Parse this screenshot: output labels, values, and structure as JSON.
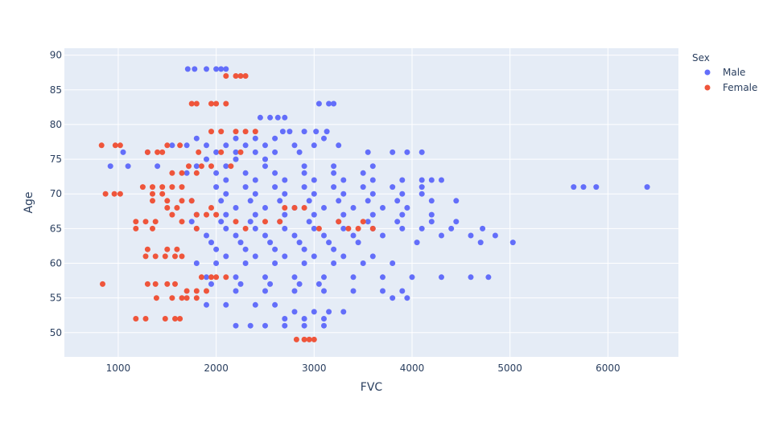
{
  "chart_data": {
    "type": "scatter",
    "xlabel": "FVC",
    "ylabel": "Age",
    "xlim": [
      450,
      6720
    ],
    "ylim": [
      46.5,
      91
    ],
    "x_ticks": [
      1000,
      2000,
      3000,
      4000,
      5000,
      6000
    ],
    "y_ticks": [
      50,
      55,
      60,
      65,
      70,
      75,
      80,
      85,
      90
    ],
    "grid": true,
    "legend": {
      "title": "Sex",
      "position": "top-right"
    },
    "colors": {
      "plot_bg": "#e5ecf6",
      "grid": "#ffffff",
      "Male": "#636efa",
      "Female": "#ef553b"
    },
    "series": [
      {
        "name": "Male",
        "points": [
          [
            1710,
            88
          ],
          [
            1780,
            88
          ],
          [
            1900,
            88
          ],
          [
            2000,
            88
          ],
          [
            2050,
            88
          ],
          [
            2100,
            88
          ],
          [
            2450,
            81
          ],
          [
            2550,
            81
          ],
          [
            2630,
            81
          ],
          [
            2700,
            81
          ],
          [
            3050,
            83
          ],
          [
            3150,
            83
          ],
          [
            3200,
            83
          ],
          [
            2680,
            79
          ],
          [
            2750,
            79
          ],
          [
            2900,
            79
          ],
          [
            3020,
            79
          ],
          [
            3130,
            79
          ],
          [
            1800,
            78
          ],
          [
            2200,
            78
          ],
          [
            2400,
            78
          ],
          [
            2600,
            78
          ],
          [
            3100,
            78
          ],
          [
            1550,
            77
          ],
          [
            1700,
            77
          ],
          [
            1900,
            77
          ],
          [
            2100,
            77
          ],
          [
            2300,
            77
          ],
          [
            2500,
            77
          ],
          [
            2800,
            77
          ],
          [
            3000,
            77
          ],
          [
            3250,
            77
          ],
          [
            1050,
            76
          ],
          [
            1300,
            76
          ],
          [
            2000,
            76
          ],
          [
            2200,
            76
          ],
          [
            2400,
            76
          ],
          [
            2600,
            76
          ],
          [
            2850,
            76
          ],
          [
            3550,
            76
          ],
          [
            3800,
            76
          ],
          [
            3950,
            76
          ],
          [
            4100,
            76
          ],
          [
            920,
            74
          ],
          [
            1100,
            74
          ],
          [
            1400,
            74
          ],
          [
            1800,
            74
          ],
          [
            2100,
            74
          ],
          [
            2500,
            74
          ],
          [
            2900,
            74
          ],
          [
            3200,
            74
          ],
          [
            3600,
            74
          ],
          [
            1900,
            75
          ],
          [
            2200,
            75
          ],
          [
            2500,
            75
          ],
          [
            1700,
            73
          ],
          [
            2000,
            73
          ],
          [
            2300,
            73
          ],
          [
            2600,
            73
          ],
          [
            2900,
            73
          ],
          [
            3200,
            73
          ],
          [
            3500,
            73
          ],
          [
            2100,
            72
          ],
          [
            2400,
            72
          ],
          [
            2700,
            72
          ],
          [
            3000,
            72
          ],
          [
            3300,
            72
          ],
          [
            3600,
            72
          ],
          [
            3900,
            72
          ],
          [
            4100,
            72
          ],
          [
            4200,
            72
          ],
          [
            4300,
            72
          ],
          [
            2000,
            71
          ],
          [
            2300,
            71
          ],
          [
            2600,
            71
          ],
          [
            2900,
            71
          ],
          [
            3200,
            71
          ],
          [
            3500,
            71
          ],
          [
            3800,
            71
          ],
          [
            4100,
            71
          ],
          [
            5650,
            71
          ],
          [
            5750,
            71
          ],
          [
            5880,
            71
          ],
          [
            6400,
            71
          ],
          [
            2100,
            70
          ],
          [
            2400,
            70
          ],
          [
            2700,
            70
          ],
          [
            3000,
            70
          ],
          [
            3300,
            70
          ],
          [
            3600,
            70
          ],
          [
            3900,
            70
          ],
          [
            4100,
            70
          ],
          [
            1750,
            69
          ],
          [
            2050,
            69
          ],
          [
            2350,
            69
          ],
          [
            2650,
            69
          ],
          [
            2950,
            69
          ],
          [
            3250,
            69
          ],
          [
            3550,
            69
          ],
          [
            3850,
            69
          ],
          [
            4200,
            69
          ],
          [
            4450,
            69
          ],
          [
            2200,
            68
          ],
          [
            2500,
            68
          ],
          [
            2800,
            68
          ],
          [
            3100,
            68
          ],
          [
            3400,
            68
          ],
          [
            3700,
            68
          ],
          [
            3950,
            68
          ],
          [
            1800,
            67
          ],
          [
            2100,
            67
          ],
          [
            2400,
            67
          ],
          [
            2700,
            67
          ],
          [
            3000,
            67
          ],
          [
            3300,
            67
          ],
          [
            3600,
            67
          ],
          [
            3900,
            67
          ],
          [
            4200,
            67
          ],
          [
            1750,
            66
          ],
          [
            2050,
            66
          ],
          [
            2350,
            66
          ],
          [
            2650,
            66
          ],
          [
            2950,
            66
          ],
          [
            3250,
            66
          ],
          [
            3550,
            66
          ],
          [
            3850,
            66
          ],
          [
            4200,
            66
          ],
          [
            4450,
            66
          ],
          [
            1800,
            65
          ],
          [
            2100,
            65
          ],
          [
            2400,
            65
          ],
          [
            2700,
            65
          ],
          [
            3000,
            65
          ],
          [
            3300,
            65
          ],
          [
            3600,
            65
          ],
          [
            3900,
            65
          ],
          [
            4100,
            65
          ],
          [
            4400,
            65
          ],
          [
            4720,
            65
          ],
          [
            1900,
            64
          ],
          [
            2200,
            64
          ],
          [
            2500,
            64
          ],
          [
            2800,
            64
          ],
          [
            3100,
            64
          ],
          [
            3400,
            64
          ],
          [
            3700,
            64
          ],
          [
            4300,
            64
          ],
          [
            4600,
            64
          ],
          [
            4850,
            64
          ],
          [
            1950,
            63
          ],
          [
            2250,
            63
          ],
          [
            2550,
            63
          ],
          [
            2850,
            63
          ],
          [
            3150,
            63
          ],
          [
            3450,
            63
          ],
          [
            4050,
            63
          ],
          [
            4700,
            63
          ],
          [
            5030,
            63
          ],
          [
            2000,
            62
          ],
          [
            2300,
            62
          ],
          [
            2600,
            62
          ],
          [
            2900,
            62
          ],
          [
            3200,
            62
          ],
          [
            2100,
            61
          ],
          [
            2400,
            61
          ],
          [
            2700,
            61
          ],
          [
            3000,
            61
          ],
          [
            3300,
            61
          ],
          [
            3600,
            61
          ],
          [
            1800,
            60
          ],
          [
            2000,
            60
          ],
          [
            2300,
            60
          ],
          [
            2600,
            60
          ],
          [
            2900,
            60
          ],
          [
            3200,
            60
          ],
          [
            3500,
            60
          ],
          [
            3800,
            60
          ],
          [
            1900,
            58
          ],
          [
            2200,
            58
          ],
          [
            2500,
            58
          ],
          [
            2800,
            58
          ],
          [
            3100,
            58
          ],
          [
            3400,
            58
          ],
          [
            3700,
            58
          ],
          [
            4000,
            58
          ],
          [
            4300,
            58
          ],
          [
            4600,
            58
          ],
          [
            4780,
            58
          ],
          [
            1950,
            57
          ],
          [
            2250,
            57
          ],
          [
            2550,
            57
          ],
          [
            2850,
            57
          ],
          [
            3050,
            57
          ],
          [
            2200,
            56
          ],
          [
            2500,
            56
          ],
          [
            2800,
            56
          ],
          [
            3100,
            56
          ],
          [
            3400,
            56
          ],
          [
            3700,
            56
          ],
          [
            3900,
            56
          ],
          [
            3800,
            55
          ],
          [
            3950,
            55
          ],
          [
            1900,
            54
          ],
          [
            2100,
            54
          ],
          [
            2400,
            54
          ],
          [
            2600,
            54
          ],
          [
            2800,
            53
          ],
          [
            3000,
            53
          ],
          [
            3150,
            53
          ],
          [
            3300,
            53
          ],
          [
            2700,
            52
          ],
          [
            2900,
            52
          ],
          [
            3100,
            52
          ],
          [
            2200,
            51
          ],
          [
            2350,
            51
          ],
          [
            2500,
            51
          ],
          [
            2700,
            51
          ],
          [
            2900,
            51
          ],
          [
            3100,
            51
          ]
        ]
      },
      {
        "name": "Female",
        "points": [
          [
            2100,
            87
          ],
          [
            2200,
            87
          ],
          [
            2250,
            87
          ],
          [
            2300,
            87
          ],
          [
            1750,
            83
          ],
          [
            1800,
            83
          ],
          [
            1950,
            83
          ],
          [
            2000,
            83
          ],
          [
            2100,
            83
          ],
          [
            1950,
            79
          ],
          [
            2050,
            79
          ],
          [
            2200,
            79
          ],
          [
            2300,
            79
          ],
          [
            2400,
            79
          ],
          [
            830,
            77
          ],
          [
            970,
            77
          ],
          [
            1020,
            77
          ],
          [
            1500,
            77
          ],
          [
            1630,
            77
          ],
          [
            1300,
            76
          ],
          [
            1400,
            76
          ],
          [
            1450,
            76
          ],
          [
            1820,
            76
          ],
          [
            2050,
            76
          ],
          [
            2250,
            76
          ],
          [
            1720,
            74
          ],
          [
            1850,
            74
          ],
          [
            1950,
            74
          ],
          [
            2150,
            74
          ],
          [
            1550,
            73
          ],
          [
            1650,
            73
          ],
          [
            1800,
            73
          ],
          [
            1250,
            71
          ],
          [
            1350,
            71
          ],
          [
            1450,
            71
          ],
          [
            1550,
            71
          ],
          [
            1650,
            71
          ],
          [
            870,
            70
          ],
          [
            960,
            70
          ],
          [
            1020,
            70
          ],
          [
            1350,
            70
          ],
          [
            1450,
            70
          ],
          [
            1350,
            69
          ],
          [
            1650,
            69
          ],
          [
            1750,
            69
          ],
          [
            1500,
            69
          ],
          [
            1500,
            68
          ],
          [
            1600,
            68
          ],
          [
            1950,
            68
          ],
          [
            2700,
            68
          ],
          [
            2800,
            68
          ],
          [
            2900,
            68
          ],
          [
            1550,
            67
          ],
          [
            1800,
            67
          ],
          [
            1900,
            67
          ],
          [
            2000,
            67
          ],
          [
            1180,
            66
          ],
          [
            1280,
            66
          ],
          [
            1380,
            66
          ],
          [
            1650,
            66
          ],
          [
            2200,
            66
          ],
          [
            2500,
            66
          ],
          [
            2650,
            66
          ],
          [
            3250,
            66
          ],
          [
            3500,
            66
          ],
          [
            1180,
            65
          ],
          [
            1350,
            65
          ],
          [
            1800,
            65
          ],
          [
            2300,
            65
          ],
          [
            3050,
            65
          ],
          [
            3350,
            65
          ],
          [
            3450,
            65
          ],
          [
            3600,
            65
          ],
          [
            1300,
            62
          ],
          [
            1500,
            62
          ],
          [
            1600,
            62
          ],
          [
            1280,
            61
          ],
          [
            1380,
            61
          ],
          [
            1480,
            61
          ],
          [
            1580,
            61
          ],
          [
            1650,
            61
          ],
          [
            1850,
            58
          ],
          [
            1950,
            58
          ],
          [
            2000,
            58
          ],
          [
            2100,
            58
          ],
          [
            1300,
            57
          ],
          [
            1380,
            57
          ],
          [
            1500,
            57
          ],
          [
            1580,
            57
          ],
          [
            840,
            57
          ],
          [
            1700,
            56
          ],
          [
            1800,
            56
          ],
          [
            1900,
            56
          ],
          [
            1550,
            55
          ],
          [
            1650,
            55
          ],
          [
            1700,
            55
          ],
          [
            1800,
            55
          ],
          [
            1390,
            55
          ],
          [
            1180,
            52
          ],
          [
            1280,
            52
          ],
          [
            1480,
            52
          ],
          [
            1580,
            52
          ],
          [
            1630,
            52
          ],
          [
            2820,
            49
          ],
          [
            2900,
            49
          ],
          [
            2950,
            49
          ],
          [
            3000,
            49
          ]
        ]
      }
    ]
  }
}
